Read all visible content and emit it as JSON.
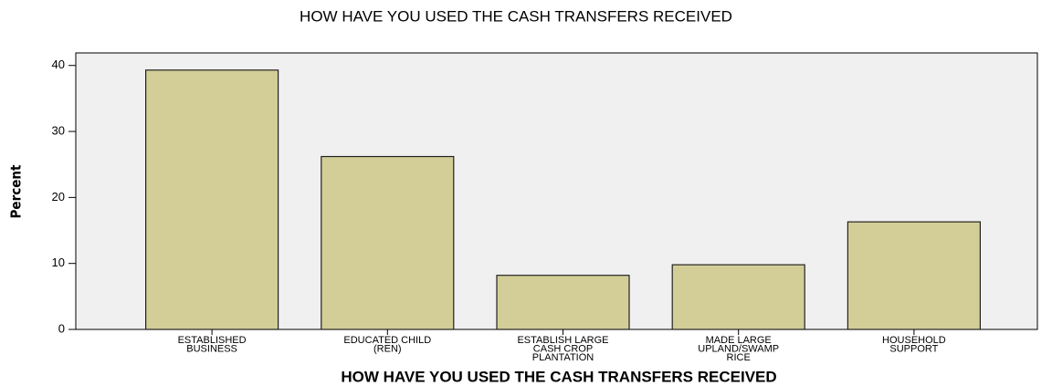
{
  "chart_data": {
    "type": "bar",
    "title": "HOW HAVE YOU USED THE CASH TRANSFERS RECEIVED",
    "x_label": "HOW HAVE YOU USED THE CASH TRANSFERS RECEIVED",
    "y_label": "Percent",
    "categories": [
      "ESTABLISHED\nBUSINESS",
      "EDUCATED CHILD\n(REN)",
      "ESTABLISH LARGE\nCASH CROP\nPLANTATION",
      "MADE LARGE\nUPLAND/SWAMP\nRICE",
      "HOUSEHOLD\nSUPPORT"
    ],
    "values": [
      39.3,
      26.2,
      8.2,
      9.8,
      16.3
    ],
    "color": "#d3ce97",
    "ylim": [
      0,
      41.9
    ],
    "yticks": [
      0,
      10,
      20,
      30,
      40
    ],
    "grid": false
  }
}
